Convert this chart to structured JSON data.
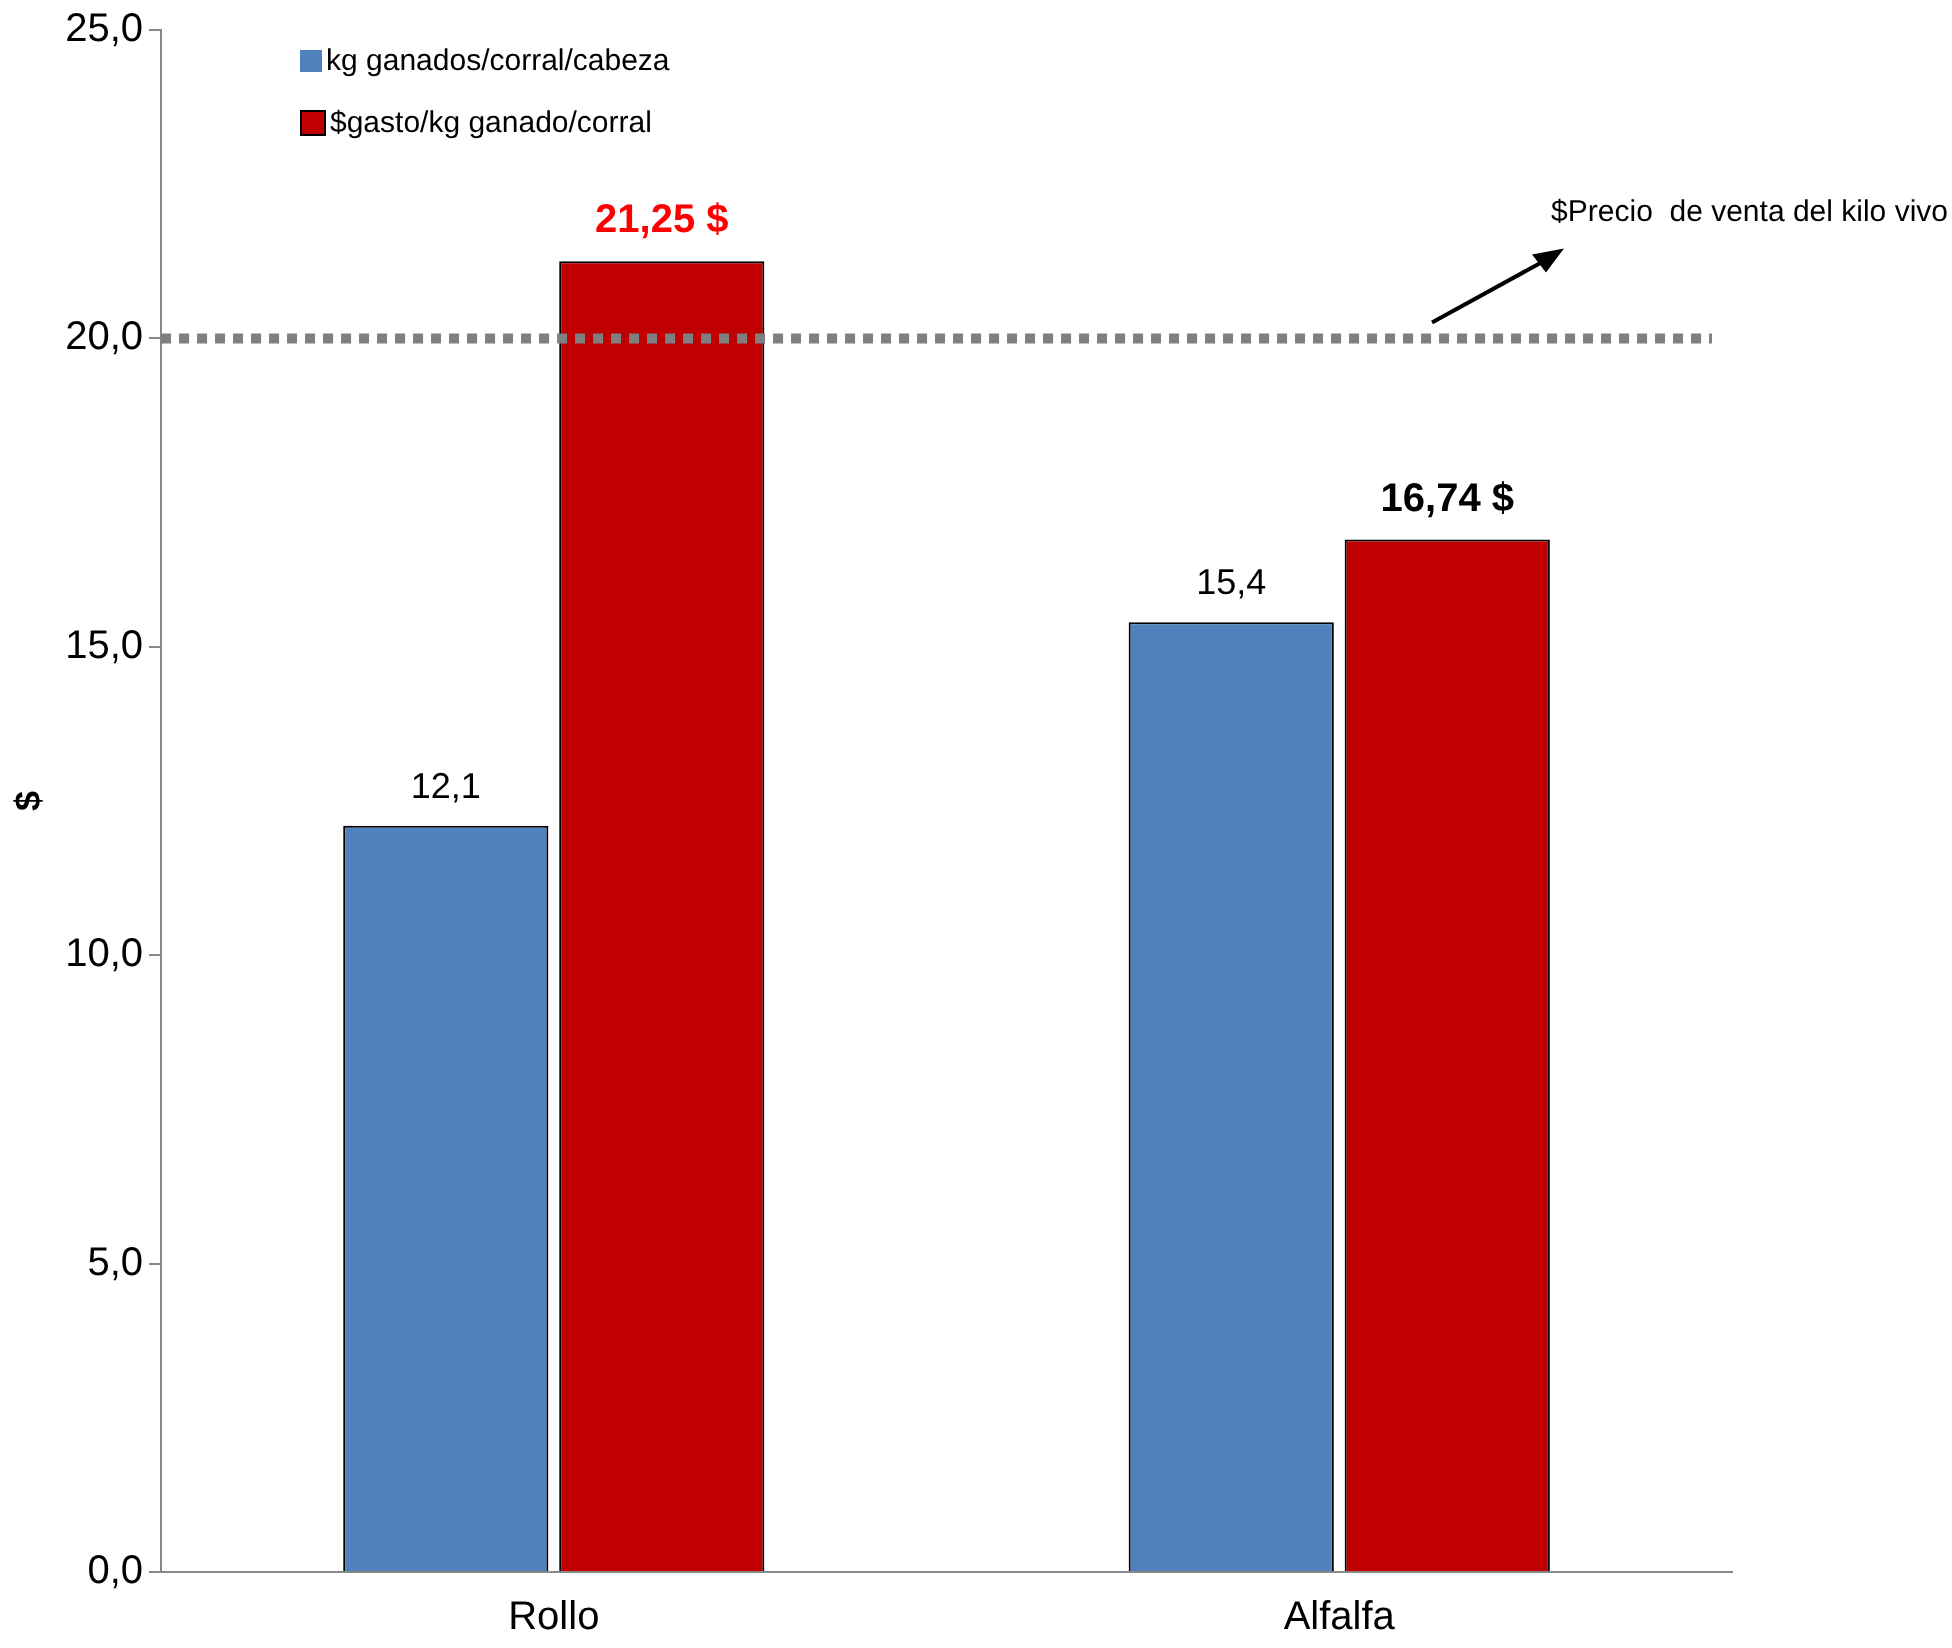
{
  "chart_data": {
    "type": "bar",
    "ylabel": "$",
    "categories": [
      "Rollo",
      "Alfalfa"
    ],
    "series": [
      {
        "name": "kg ganados/corral/cabeza",
        "color": "#4f81bd",
        "values": [
          12.1,
          15.4
        ],
        "value_labels": [
          "12,1",
          "15,4"
        ]
      },
      {
        "name": "$gasto/kg ganado/corral",
        "color": "#c00000",
        "values": [
          21.25,
          16.74
        ],
        "value_labels": [
          "21,25 $",
          "16,74 $"
        ]
      }
    ],
    "ylim": [
      0,
      25
    ],
    "yticks": [
      {
        "value": 0,
        "label": "0,0"
      },
      {
        "value": 5,
        "label": "5,0"
      },
      {
        "value": 10,
        "label": "10,0"
      },
      {
        "value": 15,
        "label": "15,0"
      },
      {
        "value": 20,
        "label": "20,0"
      },
      {
        "value": 25,
        "label": "25,0"
      }
    ],
    "ref_lines": [
      {
        "axis": "y",
        "value": 20,
        "label": "$Precio  de venta del kilo vivo",
        "color": "#7f7f7f",
        "line_style": "dotted"
      }
    ],
    "grid": false,
    "legend": "top left"
  }
}
